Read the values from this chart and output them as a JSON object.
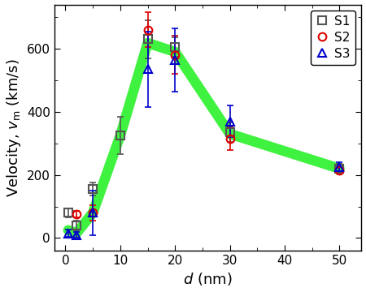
{
  "xlabel": "$d$ (nm)",
  "ylabel": "Velocity, $v_\\mathrm{m}$ (km/s)",
  "xlim": [
    -2,
    54
  ],
  "ylim": [
    -40,
    740
  ],
  "xticks": [
    0,
    10,
    20,
    30,
    40,
    50
  ],
  "yticks": [
    0,
    200,
    400,
    600
  ],
  "S1": {
    "x": [
      0.5,
      2,
      5,
      10,
      15,
      20,
      30,
      50
    ],
    "y": [
      80,
      40,
      155,
      325,
      630,
      605,
      335,
      220
    ],
    "yerr": [
      15,
      15,
      20,
      60,
      60,
      30,
      30,
      15
    ],
    "color": "#555555",
    "marker": "s",
    "markersize": 7,
    "label": "S1"
  },
  "S2": {
    "x": [
      2,
      5,
      15,
      20,
      30,
      50
    ],
    "y": [
      75,
      80,
      660,
      580,
      315,
      215
    ],
    "yerr": [
      10,
      25,
      55,
      60,
      35,
      10
    ],
    "color": "#dd0000",
    "marker": "o",
    "markersize": 7,
    "label": "S2"
  },
  "S3": {
    "x": [
      0.5,
      2,
      5,
      15,
      20,
      30,
      50
    ],
    "y": [
      15,
      10,
      80,
      535,
      565,
      370,
      225
    ],
    "yerr": [
      12,
      10,
      70,
      120,
      100,
      50,
      15
    ],
    "color": "#0000cc",
    "marker": "^",
    "markersize": 7,
    "label": "S3"
  },
  "trend_x": [
    0.5,
    2,
    5,
    10,
    15,
    20,
    30,
    50
  ],
  "trend_y": [
    25,
    15,
    80,
    325,
    618,
    590,
    330,
    220
  ],
  "trend_color": "#00ee00",
  "trend_linewidth": 9,
  "trend_alpha": 0.75,
  "legend_loc": "upper right",
  "legend_fontsize": 11,
  "axis_label_fontsize": 13,
  "tick_fontsize": 11
}
